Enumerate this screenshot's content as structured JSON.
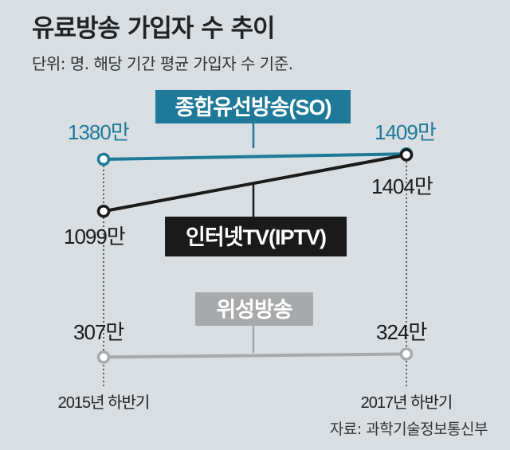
{
  "title": "유료방송 가입자 수 추이",
  "subtitle": "단위: 명. 해당 기간 평균 가입자 수 기준.",
  "source": "자료: 과학기술정보통신부",
  "colors": {
    "so": "#1f7a99",
    "iptv": "#1a1a1a",
    "satellite": "#a7a9ab",
    "background": "#d8dee2"
  },
  "chart_data": {
    "type": "line",
    "categories": [
      "2015년 하반기",
      "2017년 하반기"
    ],
    "unit": "만",
    "series": [
      {
        "key": "so",
        "name": "종합유선방송(SO)",
        "values": [
          1380,
          1409
        ],
        "labels": [
          "1380만",
          "1409만"
        ]
      },
      {
        "key": "iptv",
        "name": "인터넷TV(IPTV)",
        "values": [
          1099,
          1404
        ],
        "labels": [
          "1099만",
          "1404만"
        ]
      },
      {
        "key": "satellite",
        "name": "위성방송",
        "values": [
          307,
          324
        ],
        "labels": [
          "307만",
          "324만"
        ]
      }
    ]
  }
}
